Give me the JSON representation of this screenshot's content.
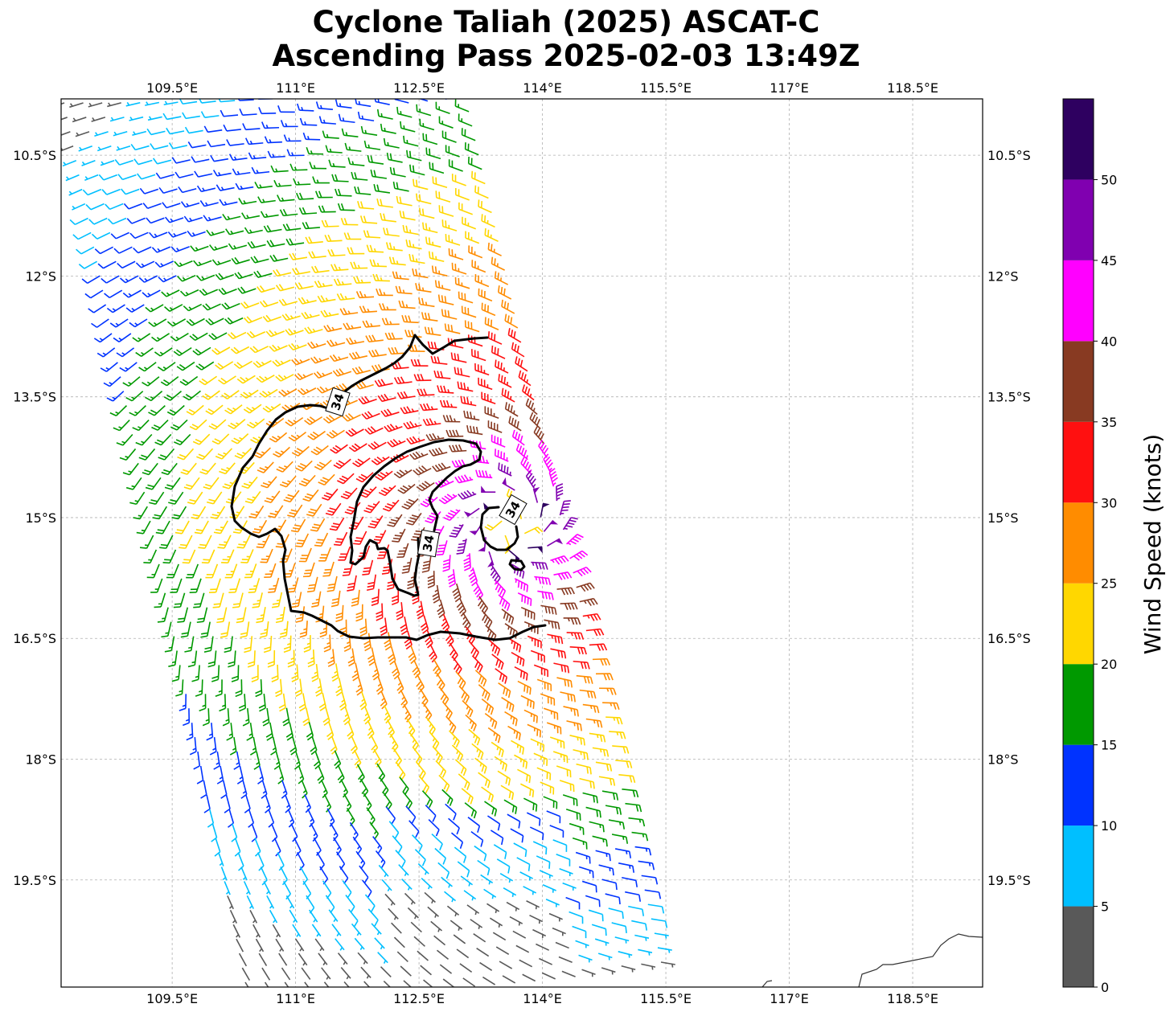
{
  "chart_data": {
    "type": "wind-barb map",
    "title_line1": "Cyclone Taliah (2025) ASCAT-C",
    "title_line2": "Ascending Pass 2025-02-03 13:49Z",
    "x_tick_labels": [
      "109.5°E",
      "111°E",
      "112.5°E",
      "114°E",
      "115.5°E",
      "117°E",
      "118.5°E"
    ],
    "x_tick_values": [
      109.5,
      111.0,
      112.5,
      114.0,
      115.5,
      117.0,
      118.5
    ],
    "y_tick_labels": [
      "10.5°S",
      "12°S",
      "13.5°S",
      "15°S",
      "16.5°S",
      "18°S",
      "19.5°S"
    ],
    "y_tick_values": [
      -10.5,
      -12.0,
      -13.5,
      -15.0,
      -16.5,
      -18.0,
      -19.5
    ],
    "xlim": [
      108.15,
      119.35
    ],
    "ylim": [
      -20.83,
      -9.8
    ],
    "grid": true,
    "storm_center": {
      "lon": 113.65,
      "lat": -15.1
    },
    "contour_level": 34,
    "contour_labels": [
      "34",
      "34",
      "34"
    ],
    "colorbar": {
      "label": "Wind Speed (knots)",
      "bounds": [
        0,
        5,
        10,
        15,
        20,
        25,
        30,
        35,
        40,
        45,
        50,
        55
      ],
      "tick_labels": [
        "0",
        "5",
        "10",
        "15",
        "20",
        "25",
        "30",
        "35",
        "40",
        "45",
        "50"
      ],
      "colors": [
        "#595959",
        "#00bfff",
        "#0033ff",
        "#009900",
        "#ffd700",
        "#ff8c00",
        "#ff1010",
        "#883a22",
        "#ff00ff",
        "#8000b0",
        "#2e0060"
      ]
    }
  }
}
